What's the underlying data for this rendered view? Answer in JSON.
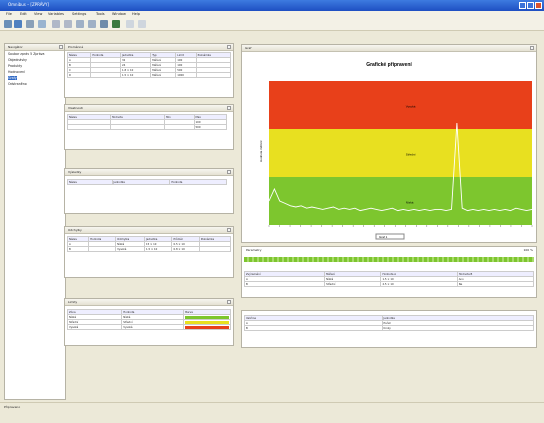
{
  "window": {
    "title": "Omnibus – [ZPRÁVY]",
    "controls": [
      "minimize",
      "maximize",
      "close"
    ]
  },
  "menu": [
    "File",
    "Edit",
    "View",
    "Variables",
    "Settings",
    "Tools",
    "Window",
    "Help"
  ],
  "toolbar": {
    "icons": [
      "open-icon",
      "save-icon",
      "print-icon",
      "cut-icon",
      "copy-icon",
      "paste-icon",
      "undo-icon",
      "redo-icon",
      "run-icon",
      "play-icon",
      "back-icon",
      "forward-icon"
    ]
  },
  "navigator": {
    "title": "Navigátor",
    "items": [
      "Soubor zpráv 5 Zpráva",
      "Objednávky",
      "Produkty",
      "Hodnocení",
      "Grafy",
      "Odstraněno"
    ]
  },
  "panels": {
    "p1": {
      "title": "Proměnné",
      "columns": [
        "Název",
        "Hodnota",
        "Jednotka",
        "Typ",
        "Limit",
        "Poznámka"
      ],
      "rows": [
        [
          "A",
          "",
          "32",
          "Měření",
          "100",
          ""
        ],
        [
          "B",
          "",
          "24",
          "Měření",
          "100",
          ""
        ],
        [
          "C",
          "",
          "1.8 × 10",
          "Měření",
          "500",
          ""
        ],
        [
          "D",
          "",
          "1.5 × 10",
          "Měření",
          "1000",
          ""
        ]
      ]
    },
    "p2": {
      "title": "Vlastnosti",
      "columns": [
        "Název",
        "Hodnota",
        "Min",
        "Max"
      ],
      "rows": [
        [
          "",
          "",
          "",
          "100"
        ],
        [
          "",
          "",
          "",
          "500"
        ]
      ]
    },
    "p3": {
      "title": "Výsledky",
      "columns": [
        "Název",
        "Jednotka",
        "Hodnota"
      ],
      "rows": []
    },
    "p4": {
      "title": "Odchylky",
      "columns": [
        "Název",
        "Hodnota",
        "Odchylka",
        "Jednotka",
        "Průměr",
        "Poznámka"
      ],
      "rows": [
        [
          "A",
          "",
          "Nízká",
          "15 × 10",
          "0.5 × 10",
          ""
        ],
        [
          "B",
          "",
          "Vysoká",
          "1.5 × 10",
          "0.8 × 10",
          ""
        ]
      ]
    },
    "p5": {
      "title": "Limity",
      "columns": [
        "Zóna",
        "Hodnota",
        "Barva"
      ],
      "rows": [
        [
          "Nízká",
          "Nízká",
          ""
        ],
        [
          "Střední",
          "Střední",
          ""
        ],
        [
          "Vysoká",
          "Vysoká",
          ""
        ]
      ]
    }
  },
  "chart_panel": {
    "title": "Graf"
  },
  "chart_data": {
    "type": "line",
    "title": "Grafické připravení",
    "ylabel": "Hodnota měření",
    "zones": [
      {
        "label": "Vysoká",
        "color": "#e8401a"
      },
      {
        "label": "Střední",
        "color": "#e8e020"
      },
      {
        "label": "Nízká",
        "color": "#7dc62e"
      }
    ],
    "series": [
      {
        "values": [
          2,
          3,
          2,
          1.8,
          1.6,
          1.5,
          1.6,
          1.4,
          1.5,
          1.4,
          1.3,
          1.4,
          1.5,
          1.3,
          1.4,
          1.3,
          1.4,
          1.2,
          1.3,
          1.4,
          1.3,
          1.2,
          1.3,
          1.4,
          1.2,
          1.3,
          1.2,
          1.3,
          1.2,
          1.3,
          1.2,
          1.3,
          1.3,
          1.2,
          1.3,
          8.5,
          1.4,
          1.2,
          1.3,
          1.2,
          1.3,
          1.2,
          1.3,
          1.2,
          1.3,
          1.2,
          1.4,
          1.3,
          1.2,
          1.3
        ]
      }
    ],
    "ylim": [
      0,
      12
    ]
  },
  "chart_controls": {
    "zoom": "Graf 1"
  },
  "lower_tables": {
    "t1": {
      "title": "Parametry",
      "right": "100 %",
      "columns": [
        "Zvýraznění",
        "Měření",
        "Hodnota A",
        "Hodnota B"
      ],
      "rows": [
        [
          "A",
          "Nízká",
          "1.5 × 10",
          "Ano"
        ],
        [
          "B",
          "Střední",
          "2.5 × 10",
          "Ne"
        ]
      ]
    },
    "t2": {
      "columns": [
        "Veličina",
        "Jednotka"
      ],
      "rows": [
        [
          "A",
          "Počet"
        ],
        [
          "B",
          "Kroky"
        ]
      ]
    }
  },
  "status": "Připraveno"
}
